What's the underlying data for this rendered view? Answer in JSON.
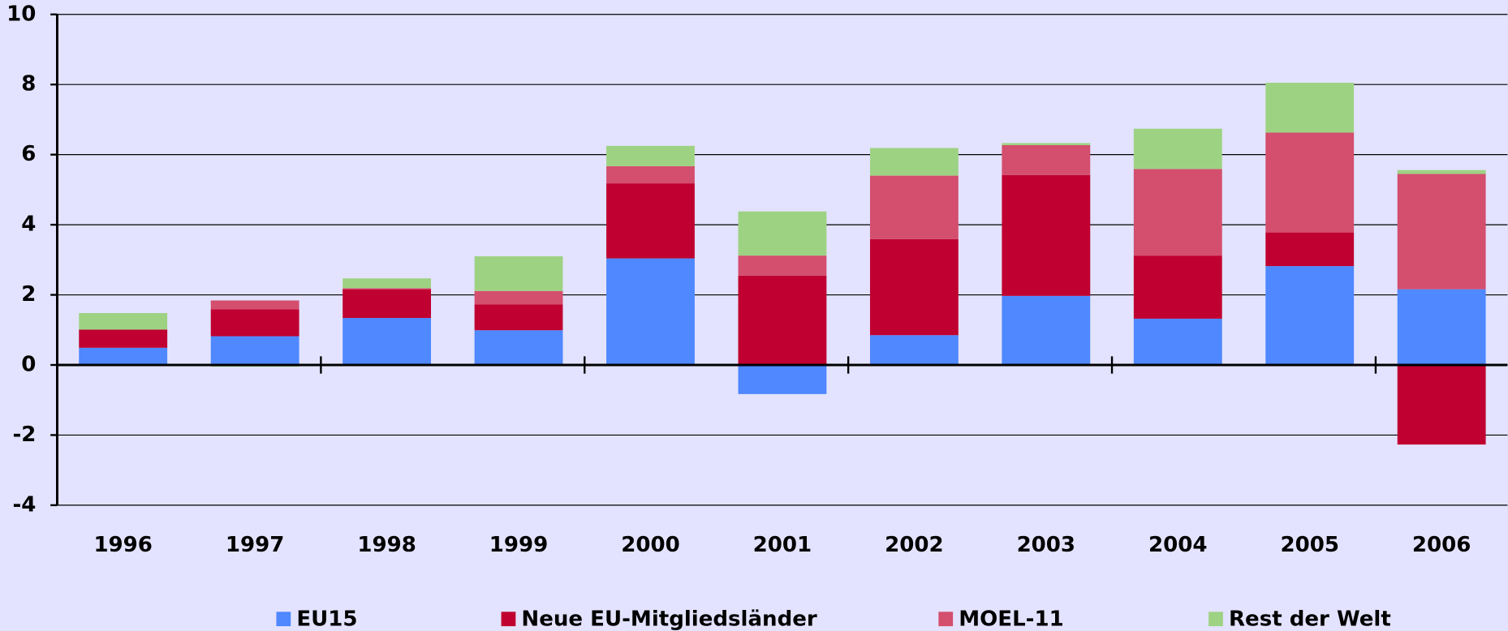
{
  "chart_data": {
    "type": "stacked_bar",
    "categories": [
      "1996",
      "1997",
      "1998",
      "1999",
      "2000",
      "2001",
      "2002",
      "2003",
      "2004",
      "2005",
      "2006"
    ],
    "series": [
      {
        "name": "EU15",
        "color": "#4f88ff",
        "values": [
          0.49,
          0.82,
          1.34,
          0.99,
          3.04,
          -0.83,
          0.85,
          1.97,
          1.32,
          2.82,
          2.16
        ]
      },
      {
        "name": "Neue EU-Mitgliedsländer",
        "color": "#c00030",
        "values": [
          0.52,
          0.77,
          0.82,
          0.74,
          2.14,
          2.55,
          2.74,
          3.45,
          1.8,
          0.96,
          -2.27
        ]
      },
      {
        "name": "MOEL-11",
        "color": "#d44e6e",
        "values": [
          0,
          0.25,
          0.03,
          0.38,
          0.49,
          0.57,
          1.81,
          0.85,
          2.47,
          2.85,
          3.29
        ]
      },
      {
        "name": "Rest der Welt",
        "color": "#9ed283",
        "values": [
          0.47,
          -0.05,
          0.28,
          0.99,
          0.58,
          1.26,
          0.79,
          0.06,
          1.15,
          1.42,
          0.11
        ]
      }
    ],
    "ylim": [
      -4,
      10
    ],
    "yticks": [
      -4,
      -2,
      0,
      2,
      4,
      6,
      8,
      10
    ],
    "grid": true,
    "legend": "bottom"
  }
}
